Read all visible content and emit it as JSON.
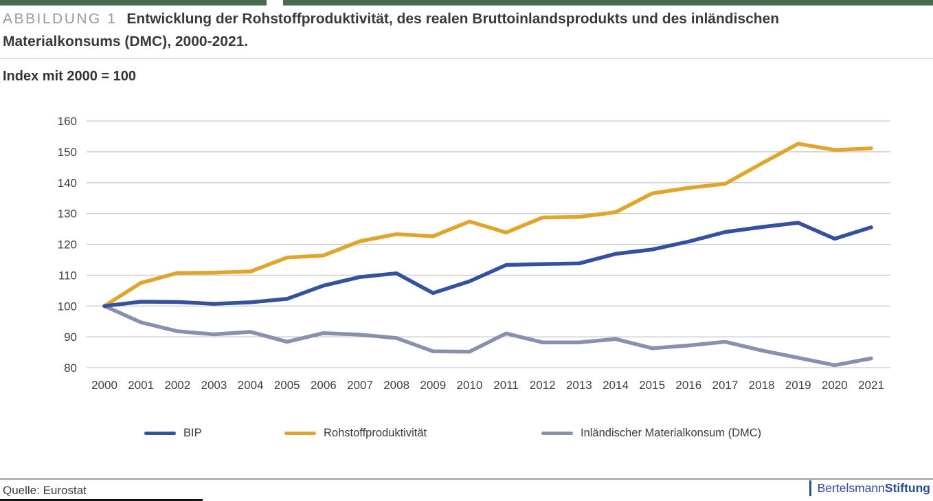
{
  "header": {
    "kicker": "ABBILDUNG 1",
    "title": "Entwicklung der Rohstoffproduktivität, des realen Bruttoinlandsprodukts und des inländischen Materialkonsums (DMC), 2000-2021."
  },
  "subtitle": "Index mit 2000 = 100",
  "chart_data": {
    "type": "line",
    "title": "Entwicklung der Rohstoffproduktivität, des realen Bruttoinlandsprodukts und des inländischen Materialkonsums (DMC), 2000-2021",
    "ylabel": "Index mit 2000 = 100",
    "xlabel": "",
    "x": [
      2000,
      2001,
      2002,
      2003,
      2004,
      2005,
      2006,
      2007,
      2008,
      2009,
      2010,
      2011,
      2012,
      2013,
      2014,
      2015,
      2016,
      2017,
      2018,
      2019,
      2020,
      2021
    ],
    "ylim": [
      80,
      160
    ],
    "ytick_step": 10,
    "yticks": [
      80,
      90,
      100,
      110,
      120,
      130,
      140,
      150,
      160
    ],
    "grid": true,
    "legend_position": "bottom",
    "series": [
      {
        "name": "BIP",
        "color": "#34519f",
        "values": [
          100,
          101.4,
          101.3,
          100.7,
          101.2,
          102.3,
          106.6,
          109.4,
          110.6,
          104.2,
          108.0,
          113.3,
          113.6,
          113.8,
          116.9,
          118.3,
          120.9,
          124.0,
          125.6,
          127.0,
          121.8,
          125.5
        ]
      },
      {
        "name": "Rohstoffproduktivität",
        "color": "#e0a62b",
        "values": [
          100,
          107.5,
          110.7,
          110.8,
          111.2,
          115.7,
          116.4,
          121.0,
          123.3,
          122.6,
          127.4,
          123.8,
          128.7,
          128.9,
          130.4,
          136.5,
          138.3,
          139.6,
          146.2,
          152.6,
          150.6,
          151.1
        ]
      },
      {
        "name": "Inländischer Materialkonsum (DMC)",
        "color": "#8890ad",
        "values": [
          100,
          94.7,
          91.8,
          90.8,
          91.6,
          88.4,
          91.2,
          90.7,
          89.6,
          85.3,
          85.2,
          91.1,
          88.2,
          88.2,
          89.3,
          86.3,
          87.2,
          88.4,
          85.6,
          83.2,
          80.8,
          83.0
        ]
      }
    ]
  },
  "footer": {
    "source": "Quelle: Eurostat",
    "brand": {
      "name": "Bertelsmann",
      "suffix": "Stiftung"
    }
  },
  "colors": {
    "top_bar": "#4a6a4f",
    "grid": "#c9c9c9",
    "axis_text": "#414141",
    "brand_blue": "#2b4a9c",
    "bip_line": "#34519f",
    "rohstoff_line": "#e0a62b",
    "dmc_line": "#8890ad"
  }
}
